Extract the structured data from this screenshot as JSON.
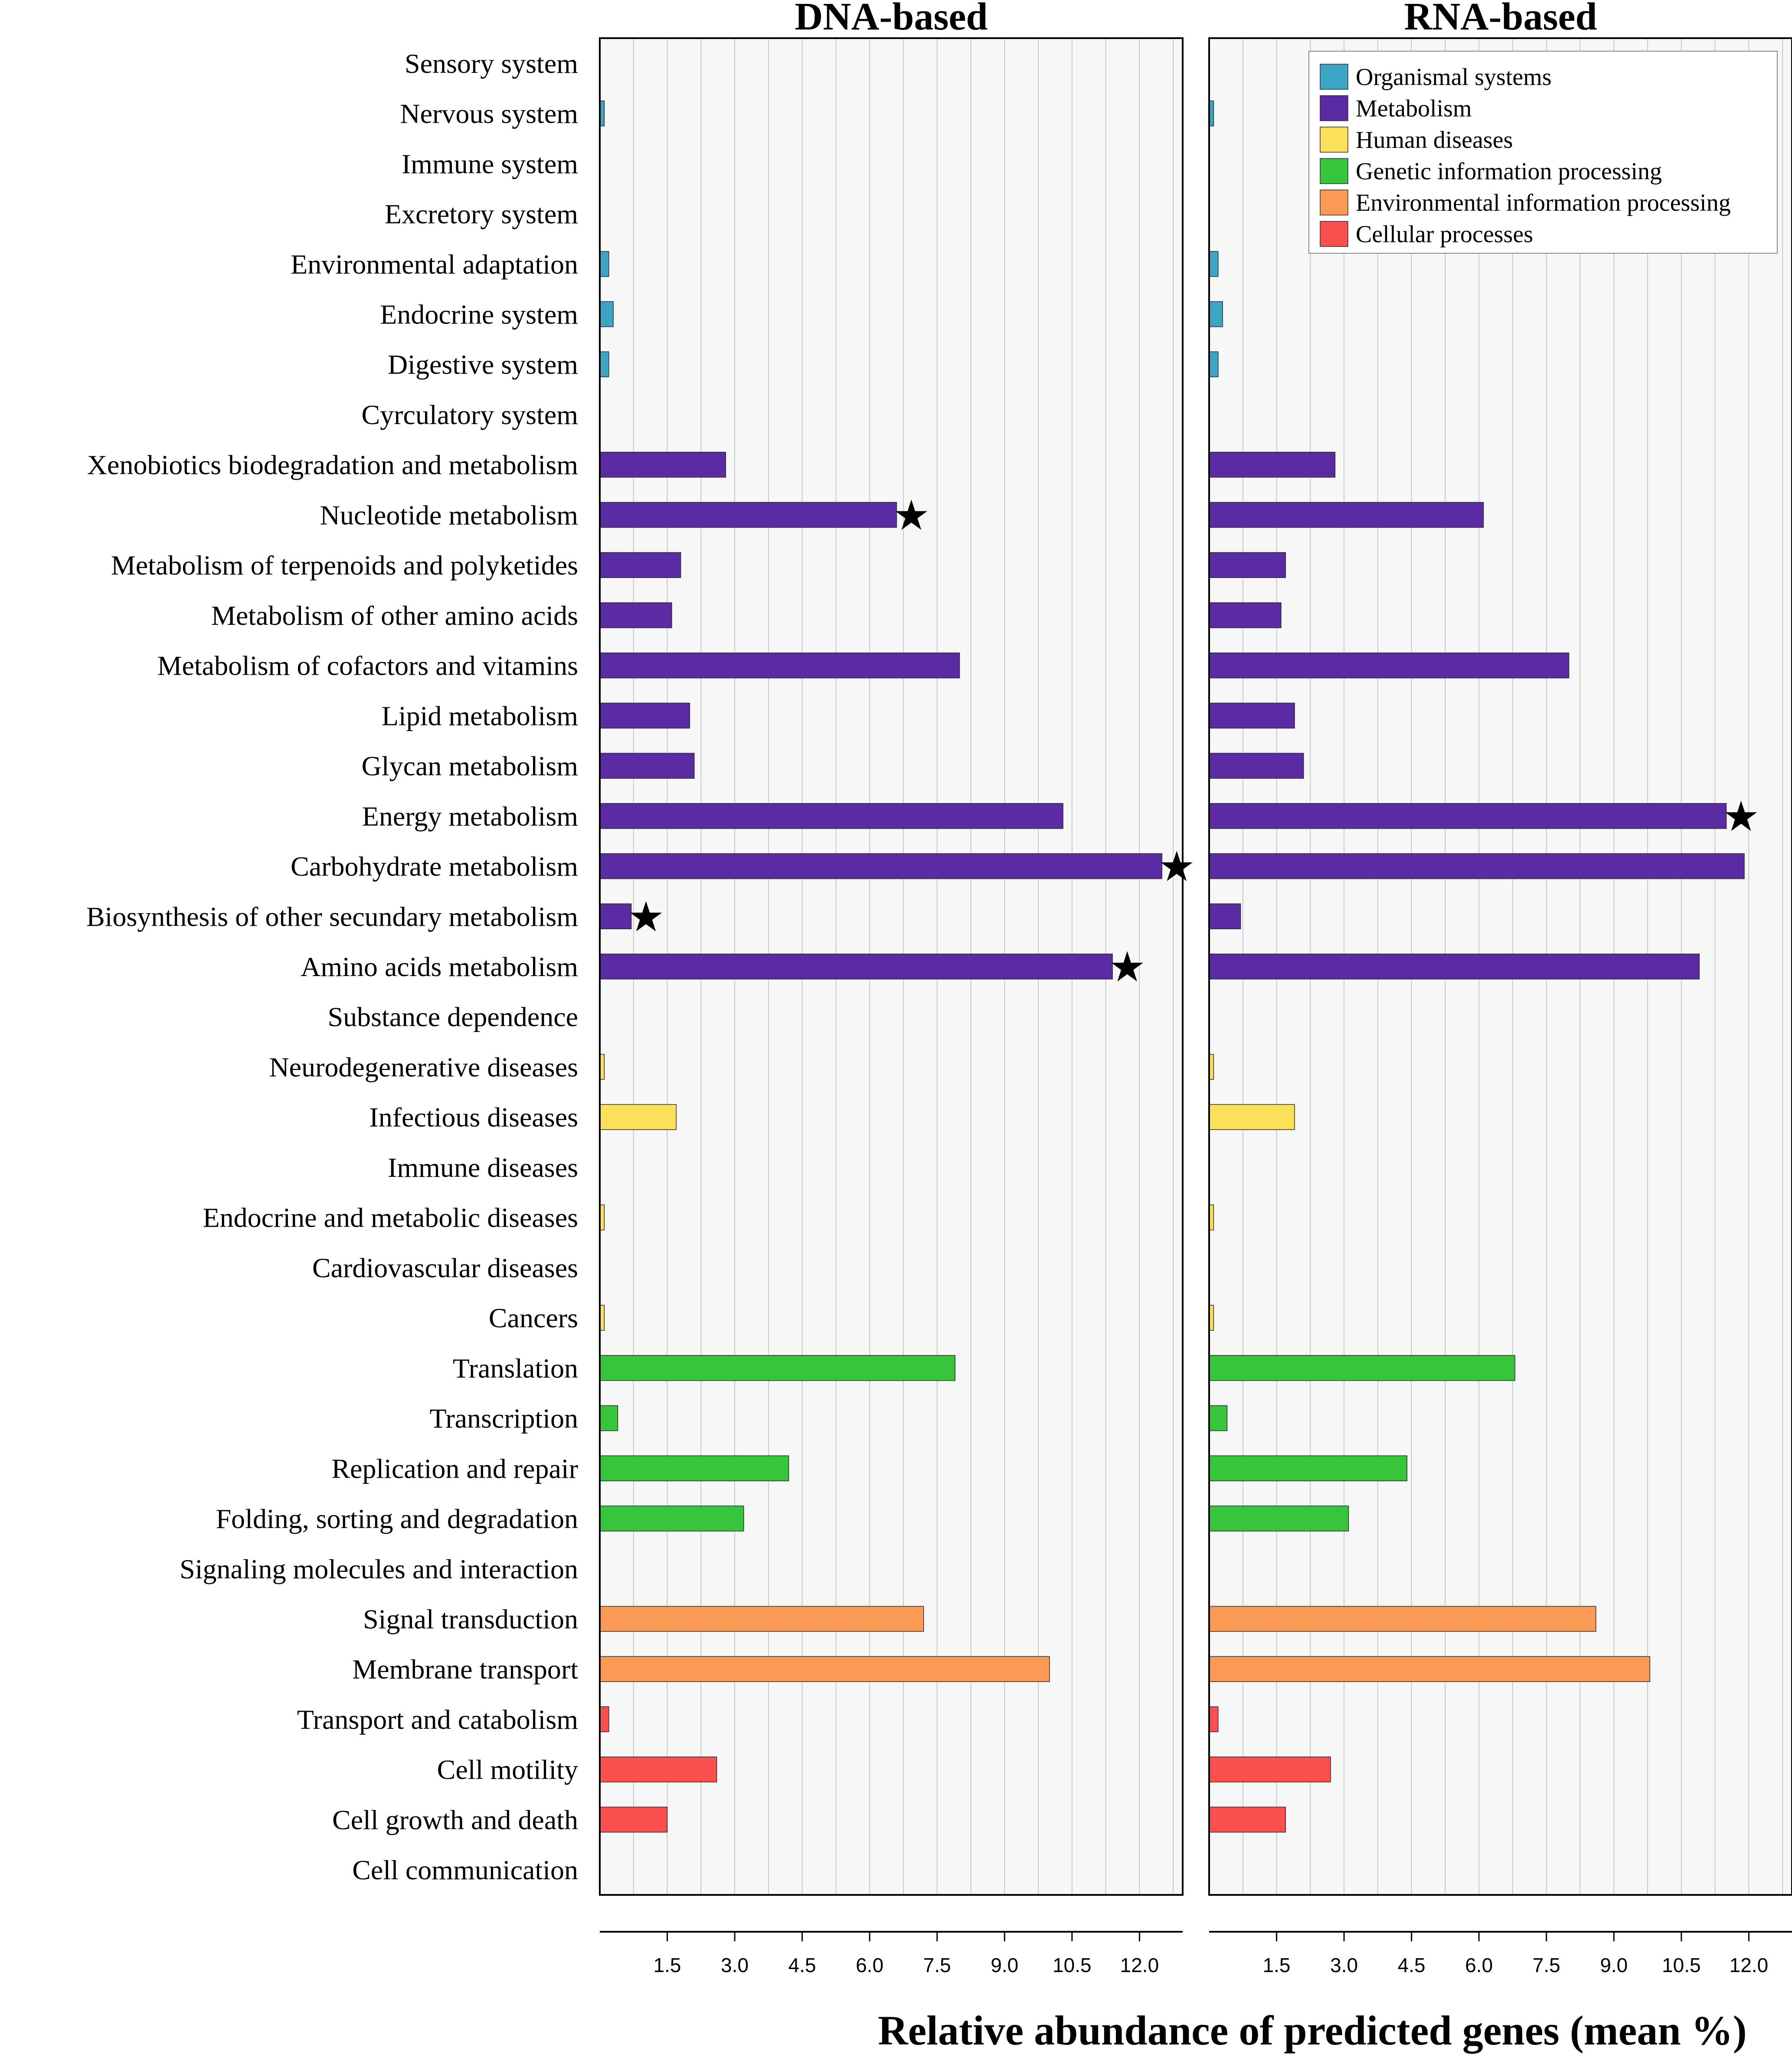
{
  "chart_data": {
    "type": "bar",
    "orientation": "horizontal",
    "xlabel": "Relative abundance of predicted genes (mean %)",
    "xlim": [
      0,
      13
    ],
    "xticks": [
      "1.5",
      "3.0",
      "4.5",
      "6.0",
      "7.5",
      "9.0",
      "10.5",
      "12.0"
    ],
    "xtick_values": [
      1.5,
      3.0,
      4.5,
      6.0,
      7.5,
      9.0,
      10.5,
      12.0
    ],
    "grid": true,
    "legend_position": "top-right",
    "star_symbol": "★",
    "groups": [
      {
        "name": "Organismal systems",
        "color": "#3ca5c4"
      },
      {
        "name": "Metabolism",
        "color": "#5b2ba4"
      },
      {
        "name": "Human diseases",
        "color": "#fde05a"
      },
      {
        "name": "Genetic information processing",
        "color": "#37c53b"
      },
      {
        "name": "Environmental information processing",
        "color": "#fb9a54"
      },
      {
        "name": "Cellular processes",
        "color": "#f9504f"
      }
    ],
    "categories": [
      {
        "label": "Sensory system",
        "group": 0
      },
      {
        "label": "Nervous system",
        "group": 0
      },
      {
        "label": "Immune system",
        "group": 0
      },
      {
        "label": "Excretory system",
        "group": 0
      },
      {
        "label": "Environmental adaptation",
        "group": 0
      },
      {
        "label": "Endocrine system",
        "group": 0
      },
      {
        "label": "Digestive system",
        "group": 0
      },
      {
        "label": "Cyrculatory system",
        "group": 0
      },
      {
        "label": "Xenobiotics biodegradation and metabolism",
        "group": 1
      },
      {
        "label": "Nucleotide metabolism",
        "group": 1
      },
      {
        "label": "Metabolism of terpenoids and polyketides",
        "group": 1
      },
      {
        "label": "Metabolism of other amino acids",
        "group": 1
      },
      {
        "label": "Metabolism of cofactors and vitamins",
        "group": 1
      },
      {
        "label": "Lipid metabolism",
        "group": 1
      },
      {
        "label": "Glycan metabolism",
        "group": 1
      },
      {
        "label": "Energy metabolism",
        "group": 1
      },
      {
        "label": "Carbohydrate metabolism",
        "group": 1
      },
      {
        "label": "Biosynthesis of other secundary metabolism",
        "group": 1
      },
      {
        "label": "Amino acids metabolism",
        "group": 1
      },
      {
        "label": "Substance dependence",
        "group": 2
      },
      {
        "label": "Neurodegenerative diseases",
        "group": 2
      },
      {
        "label": "Infectious diseases",
        "group": 2
      },
      {
        "label": "Immune diseases",
        "group": 2
      },
      {
        "label": "Endocrine and metabolic diseases",
        "group": 2
      },
      {
        "label": "Cardiovascular diseases",
        "group": 2
      },
      {
        "label": "Cancers",
        "group": 2
      },
      {
        "label": "Translation",
        "group": 3
      },
      {
        "label": "Transcription",
        "group": 3
      },
      {
        "label": "Replication and repair",
        "group": 3
      },
      {
        "label": "Folding, sorting and degradation",
        "group": 3
      },
      {
        "label": "Signaling molecules and interaction",
        "group": 4
      },
      {
        "label": "Signal transduction",
        "group": 4
      },
      {
        "label": "Membrane transport",
        "group": 4
      },
      {
        "label": "Transport and catabolism",
        "group": 5
      },
      {
        "label": "Cell motility",
        "group": 5
      },
      {
        "label": "Cell growth and death",
        "group": 5
      },
      {
        "label": "Cell communication",
        "group": 5
      }
    ],
    "series": [
      {
        "name": "DNA-based",
        "values": [
          0,
          0.1,
          0,
          0,
          0.2,
          0.3,
          0.2,
          0,
          2.8,
          6.6,
          1.8,
          1.6,
          8.0,
          2.0,
          2.1,
          10.3,
          12.5,
          0.7,
          11.4,
          0,
          0.1,
          1.7,
          0,
          0.1,
          0,
          0.1,
          7.9,
          0.4,
          4.2,
          3.2,
          0,
          7.2,
          10.0,
          0.2,
          2.6,
          1.5,
          0
        ],
        "significant": [
          9,
          16,
          17,
          18
        ]
      },
      {
        "name": "RNA-based",
        "values": [
          0,
          0.1,
          0,
          0,
          0.2,
          0.3,
          0.2,
          0,
          2.8,
          6.1,
          1.7,
          1.6,
          8.0,
          1.9,
          2.1,
          11.5,
          11.9,
          0.7,
          10.9,
          0,
          0.1,
          1.9,
          0,
          0.1,
          0,
          0.1,
          6.8,
          0.4,
          4.4,
          3.1,
          0,
          8.6,
          9.8,
          0.2,
          2.7,
          1.7,
          0
        ],
        "significant": [
          15
        ]
      }
    ]
  }
}
